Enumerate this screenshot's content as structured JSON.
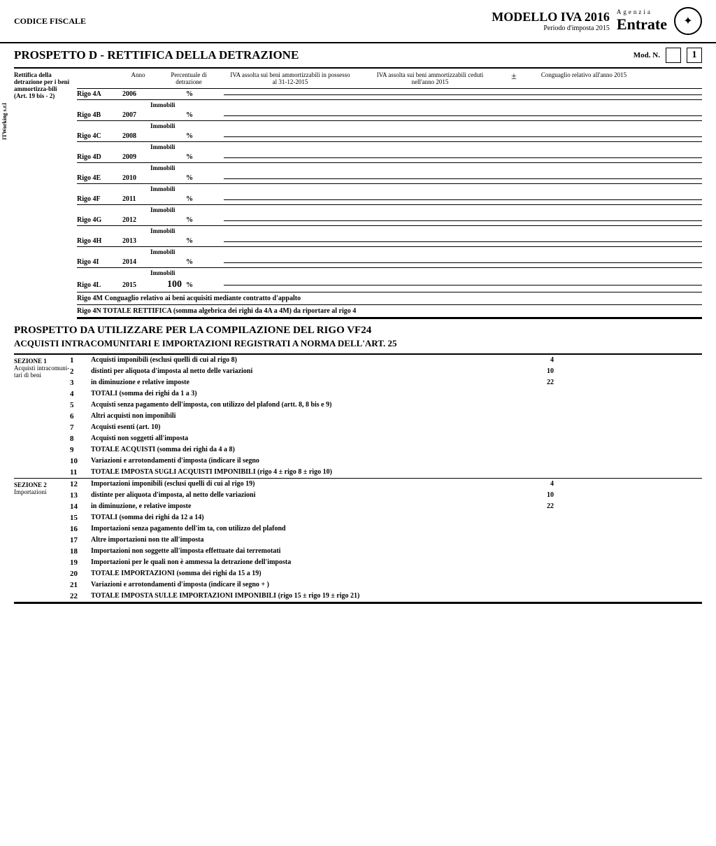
{
  "header": {
    "codice_fiscale_label": "CODICE FISCALE",
    "modello_title": "MODELLO IVA 2016",
    "periodo": "Periodo d'imposta 2015",
    "agenzia_pre": "Agenzia",
    "agenzia": "Entrate"
  },
  "prospetto_d": {
    "title": "PROSPETTO D - RETTIFICA DELLA DETRAZIONE",
    "mod_n_label": "Mod. N.",
    "mod_n_value": "1",
    "side_label_1": "Rettifica della detrazione per i beni ammortizza-bili",
    "side_label_2": "(Art. 19 bis - 2)",
    "vert_label": "ITWorking s.r.l",
    "col_anno": "Anno",
    "col_perc": "Percentuale di detrazione",
    "col_iva1": "IVA assolta sui beni ammortizzabili in possesso al 31-12-2015",
    "col_iva2": "IVA assolta sui beni ammortizzabili ceduti nell'anno 2015",
    "col_pm": "±",
    "col_cong": "Conguaglio relativo all'anno 2015",
    "immobili": "Immobili",
    "rows": [
      {
        "rigo": "Rigo 4A",
        "anno": "2006",
        "perc": ""
      },
      {
        "rigo": "Rigo 4B",
        "anno": "2007",
        "perc": ""
      },
      {
        "rigo": "Rigo 4C",
        "anno": "2008",
        "perc": ""
      },
      {
        "rigo": "Rigo 4D",
        "anno": "2009",
        "perc": ""
      },
      {
        "rigo": "Rigo 4E",
        "anno": "2010",
        "perc": ""
      },
      {
        "rigo": "Rigo 4F",
        "anno": "2011",
        "perc": ""
      },
      {
        "rigo": "Rigo 4G",
        "anno": "2012",
        "perc": ""
      },
      {
        "rigo": "Rigo 4H",
        "anno": "2013",
        "perc": ""
      },
      {
        "rigo": "Rigo 4I",
        "anno": "2014",
        "perc": ""
      },
      {
        "rigo": "Rigo 4L",
        "anno": "2015",
        "perc": "100"
      }
    ],
    "note_4m": "Rigo 4M Conguaglio relativo ai beni acquisiti mediante contratto d'appalto",
    "note_4n": "Rigo 4N TOTALE RETTIFICA (somma algebrica dei righi da 4A a 4M) da riportare al rigo 4"
  },
  "prospetto_vf": {
    "title": "PROSPETTO DA UTILIZZARE PER LA COMPILAZIONE DEL RIGO VF24",
    "subtitle": "ACQUISTI INTRACOMUNITARI E IMPORTAZIONI REGISTRATI A NORMA DELL'ART. 25",
    "sezione1_label": "SEZIONE 1",
    "sezione1_sub": "Acquisti intracomuni-tari di beni",
    "sezione2_label": "SEZIONE 2",
    "sezione2_sub": "Importazioni",
    "rows1": [
      {
        "n": "1",
        "desc": "Acquisti imponibili (esclusi quelli di cui al rigo 8)",
        "ali": "4"
      },
      {
        "n": "2",
        "desc": "distinti per aliquota d'imposta al netto delle variazioni",
        "ali": "10"
      },
      {
        "n": "3",
        "desc": "in diminuzione e relative imposte",
        "ali": "22"
      },
      {
        "n": "4",
        "desc": "TOTALI (somma dei righi da 1 a 3)",
        "ali": ""
      },
      {
        "n": "5",
        "desc": "Acquisti senza pagamento dell'imposta, con utilizzo del plafond (artt. 8, 8 bis e 9)",
        "ali": ""
      },
      {
        "n": "6",
        "desc": "Altri acquisti non imponibili",
        "ali": ""
      },
      {
        "n": "7",
        "desc": "Acquisti esenti (art. 10)",
        "ali": ""
      },
      {
        "n": "8",
        "desc": "Acquisti non soggetti all'imposta",
        "ali": ""
      },
      {
        "n": "9",
        "desc": "TOTALE ACQUISTI (somma dei righi da 4 a 8)",
        "ali": ""
      },
      {
        "n": "10",
        "desc": "Variazioni e arrotondamenti d'imposta (indicare il segno",
        "ali": ""
      },
      {
        "n": "11",
        "desc": "TOTALE IMPOSTA SUGLI ACQUISTI IMPONIBILI (rigo 4 ± rigo 8 ± rigo 10)",
        "ali": ""
      }
    ],
    "rows2": [
      {
        "n": "12",
        "desc": "Importazioni imponibili (esclusi quelli di cui al rigo 19)",
        "ali": "4"
      },
      {
        "n": "13",
        "desc": "distinte per aliquota d'imposta, al netto delle variazioni",
        "ali": "10"
      },
      {
        "n": "14",
        "desc": "in diminuzione, e relative imposte",
        "ali": "22"
      },
      {
        "n": "15",
        "desc": "TOTALI (somma dei righi da 12 a 14)",
        "ali": ""
      },
      {
        "n": "16",
        "desc": "Importazioni senza pagamento dell'im     ta, con utilizzo del plafond",
        "ali": ""
      },
      {
        "n": "17",
        "desc": "Altre importazioni non        tte all'imposta",
        "ali": ""
      },
      {
        "n": "18",
        "desc": "Importazioni non soggette all'imposta effettuate dai terremotati",
        "ali": ""
      },
      {
        "n": "19",
        "desc": "Importazioni per le quali non è ammessa la detrazione dell'imposta",
        "ali": ""
      },
      {
        "n": "20",
        "desc": "TOTALE IMPORTAZIONI (somma dei righi da 15 a 19)",
        "ali": ""
      },
      {
        "n": "21",
        "desc": "Variazioni e arrotondamenti d'imposta (indicare il segno +    )",
        "ali": ""
      },
      {
        "n": "22",
        "desc": "TOTALE IMPOSTA SULLE IMPORTAZIONI IMPONIBILI (rigo 15 ± rigo 19 ± rigo 21)",
        "ali": ""
      }
    ]
  }
}
